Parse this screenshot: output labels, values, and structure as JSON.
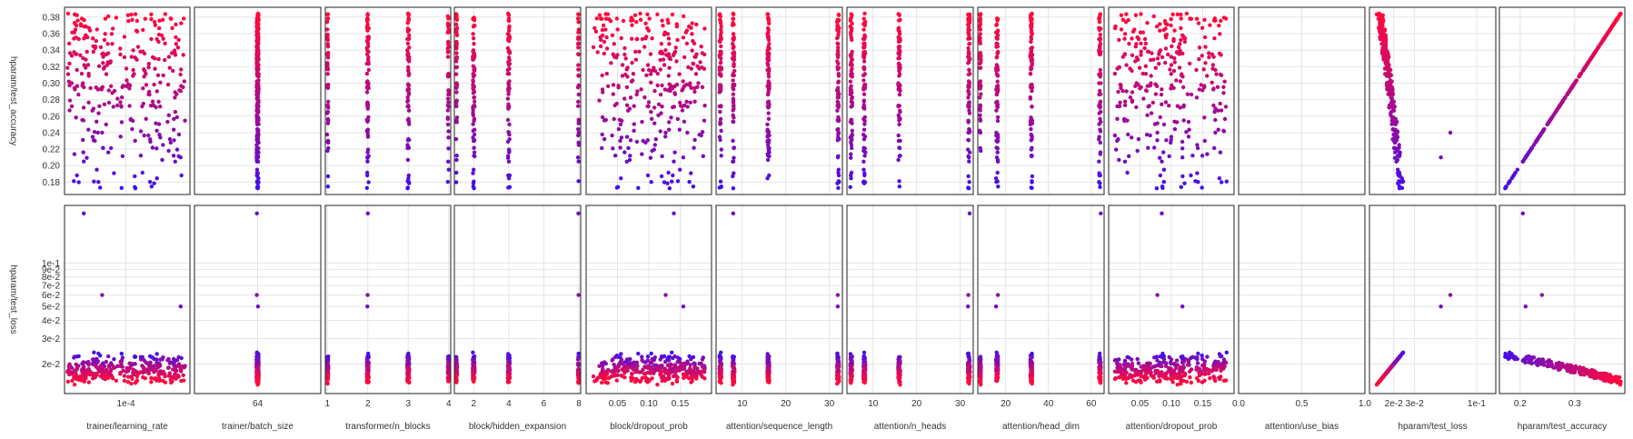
{
  "chart_data": {
    "type": "scatter",
    "layout": "scatter-matrix",
    "color_scale": {
      "low": "#3a0ef5",
      "high": "#ff0a3c",
      "metric": "hparam/test_accuracy"
    },
    "rows": [
      {
        "label": "hparam/test_accuracy",
        "scale": "linear",
        "range": [
          0.165,
          0.392
        ],
        "ticks": [
          {
            "value": 0.18,
            "label": "0.18"
          },
          {
            "value": 0.2,
            "label": "0.20"
          },
          {
            "value": 0.22,
            "label": "0.22"
          },
          {
            "value": 0.24,
            "label": "0.24"
          },
          {
            "value": 0.26,
            "label": "0.26"
          },
          {
            "value": 0.28,
            "label": "0.28"
          },
          {
            "value": 0.3,
            "label": "0.30"
          },
          {
            "value": 0.32,
            "label": "0.32"
          },
          {
            "value": 0.34,
            "label": "0.34"
          },
          {
            "value": 0.36,
            "label": "0.36"
          },
          {
            "value": 0.38,
            "label": "0.38"
          }
        ]
      },
      {
        "label": "hparam/test_loss",
        "scale": "log",
        "range": [
          0.0125,
          0.25
        ],
        "ticks": [
          {
            "value": 0.02,
            "label": "2e-2"
          },
          {
            "value": 0.03,
            "label": "3e-2"
          },
          {
            "value": 0.04,
            "label": "4e-2"
          },
          {
            "value": 0.05,
            "label": "5e-2"
          },
          {
            "value": 0.06,
            "label": "6e-2"
          },
          {
            "value": 0.07,
            "label": "7e-2"
          },
          {
            "value": 0.08,
            "label": "8e-2"
          },
          {
            "value": 0.09,
            "label": "9e-2"
          },
          {
            "value": 0.1,
            "label": "1e-1"
          }
        ]
      }
    ],
    "columns": [
      {
        "label": "trainer/learning_rate",
        "scale": "log",
        "range": [
          7.5e-05,
          0.000135
        ],
        "ticks": [
          {
            "value": 0.0001,
            "label": "1e-4"
          }
        ]
      },
      {
        "label": "trainer/batch_size",
        "scale": "linear",
        "range": [
          44,
          84
        ],
        "ticks": [
          {
            "value": 64,
            "label": "64"
          }
        ]
      },
      {
        "label": "transformer/n_blocks",
        "scale": "linear",
        "range": [
          0.95,
          4.05
        ],
        "ticks": [
          {
            "value": 1,
            "label": "1"
          },
          {
            "value": 2,
            "label": "2"
          },
          {
            "value": 3,
            "label": "3"
          },
          {
            "value": 4,
            "label": "4"
          }
        ]
      },
      {
        "label": "block/hidden_expansion",
        "scale": "linear",
        "range": [
          0.9,
          8.1
        ],
        "ticks": [
          {
            "value": 2,
            "label": "2"
          },
          {
            "value": 4,
            "label": "4"
          },
          {
            "value": 6,
            "label": "6"
          },
          {
            "value": 8,
            "label": "8"
          }
        ]
      },
      {
        "label": "block/dropout_prob",
        "scale": "linear",
        "range": [
          0.0,
          0.2
        ],
        "ticks": [
          {
            "value": 0.05,
            "label": "0.05"
          },
          {
            "value": 0.1,
            "label": "0.10"
          },
          {
            "value": 0.15,
            "label": "0.15"
          }
        ]
      },
      {
        "label": "attention/sequence_length",
        "scale": "linear",
        "range": [
          4,
          33
        ],
        "ticks": [
          {
            "value": 10,
            "label": "10"
          },
          {
            "value": 20,
            "label": "20"
          },
          {
            "value": 30,
            "label": "30"
          }
        ]
      },
      {
        "label": "attention/n_heads",
        "scale": "linear",
        "range": [
          4,
          33
        ],
        "ticks": [
          {
            "value": 10,
            "label": "10"
          },
          {
            "value": 20,
            "label": "20"
          },
          {
            "value": 30,
            "label": "30"
          }
        ]
      },
      {
        "label": "attention/head_dim",
        "scale": "linear",
        "range": [
          7,
          66
        ],
        "ticks": [
          {
            "value": 20,
            "label": "20"
          },
          {
            "value": 40,
            "label": "40"
          },
          {
            "value": 60,
            "label": "60"
          }
        ]
      },
      {
        "label": "attention/dropout_prob",
        "scale": "linear",
        "range": [
          0.0,
          0.2
        ],
        "ticks": [
          {
            "value": 0.05,
            "label": "0.05"
          },
          {
            "value": 0.1,
            "label": "0.10"
          },
          {
            "value": 0.15,
            "label": "0.15"
          }
        ]
      },
      {
        "label": "attention/use_bias",
        "scale": "linear",
        "range": [
          0.0,
          1.0
        ],
        "ticks": [
          {
            "value": 0,
            "label": "0.0"
          },
          {
            "value": 0.5,
            "label": "0.5"
          },
          {
            "value": 1,
            "label": "1.0"
          }
        ]
      },
      {
        "label": "hparam/test_loss",
        "scale": "log",
        "range": [
          0.0125,
          0.145
        ],
        "ticks": [
          {
            "value": 0.02,
            "label": "2e-2"
          },
          {
            "value": 0.03,
            "label": "3e-2"
          },
          {
            "value": 0.1,
            "label": "1e-1"
          }
        ]
      },
      {
        "label": "hparam/test_accuracy",
        "scale": "linear",
        "range": [
          0.162,
          0.392
        ],
        "ticks": [
          {
            "value": 0.2,
            "label": "0.2"
          },
          {
            "value": 0.3,
            "label": "0.3"
          }
        ]
      }
    ],
    "n_points": 300,
    "generation": "synthetic approximation of the visible point cloud (seeded)"
  }
}
